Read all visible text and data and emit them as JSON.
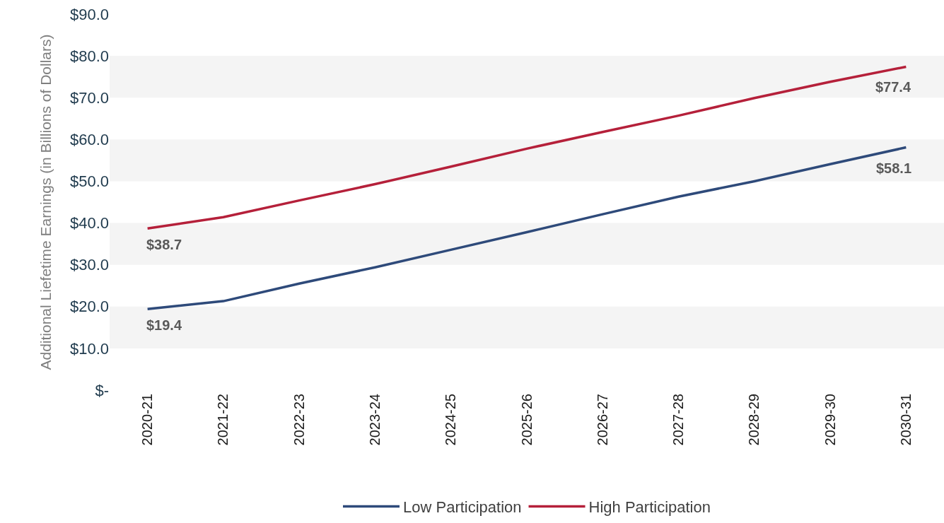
{
  "chart_data": {
    "type": "line",
    "ylabel": "Additional Liefetime Earnings (in Billions of Dollars)",
    "categories": [
      "2020-21",
      "2021-22",
      "2022-23",
      "2023-24",
      "2024-25",
      "2025-26",
      "2026-27",
      "2027-28",
      "2028-29",
      "2029-30",
      "2030-31"
    ],
    "series": [
      {
        "name": "Low Participation",
        "color": "#2e4a7a",
        "values": [
          19.4,
          21.3,
          25.5,
          29.4,
          33.6,
          37.8,
          42.1,
          46.3,
          50.0,
          54.1,
          58.1
        ],
        "value_labels": [
          "$19.4",
          null,
          null,
          null,
          null,
          null,
          null,
          null,
          null,
          null,
          "$58.1"
        ]
      },
      {
        "name": "High Participation",
        "color": "#b5203a",
        "values": [
          38.7,
          41.4,
          45.4,
          49.3,
          53.5,
          57.8,
          61.8,
          65.7,
          69.9,
          73.8,
          77.4
        ],
        "value_labels": [
          "$38.7",
          null,
          null,
          null,
          null,
          null,
          null,
          null,
          null,
          null,
          "$77.4"
        ]
      }
    ],
    "ylim": [
      0,
      90
    ],
    "yticks": [
      {
        "value": 0,
        "label": "$-"
      },
      {
        "value": 10,
        "label": "$10.0"
      },
      {
        "value": 20,
        "label": "$20.0"
      },
      {
        "value": 30,
        "label": "$30.0"
      },
      {
        "value": 40,
        "label": "$40.0"
      },
      {
        "value": 50,
        "label": "$50.0"
      },
      {
        "value": 60,
        "label": "$60.0"
      },
      {
        "value": 70,
        "label": "$70.0"
      },
      {
        "value": 80,
        "label": "$80.0"
      },
      {
        "value": 90,
        "label": "$90.0"
      }
    ],
    "legend": "bottom",
    "marker": "none",
    "line_style": "solid"
  }
}
